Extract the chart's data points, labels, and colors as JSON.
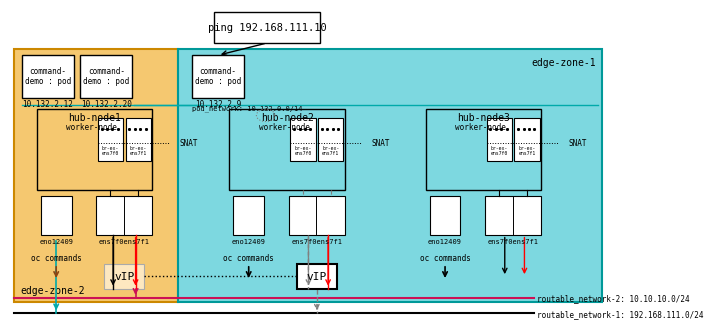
{
  "bg_color": "#ffffff",
  "zone2_color": "#f5c870",
  "zone1_color": "#7dd8e0",
  "zone2_border": "#cc8800",
  "zone1_border": "#009999",
  "node_border": "#000000",
  "ping_label": "ping 192.168.111.10",
  "zone2_label": "edge-zone-2",
  "zone1_label": "edge-zone-1",
  "pod_network_label": "pod_network: 10.132.0.0/14",
  "routable1_label": "routable_network-1: 192.168.111.0/24",
  "routable2_label": "routable_network-2: 10.10.10.0/24",
  "node_labels": [
    "hub-node1",
    "hub-node2",
    "hub-node3"
  ],
  "pod_labels": [
    "command-\ndemo : pod",
    "command-\ndemo : pod",
    "command-\ndemo : pod"
  ],
  "pod_ips": [
    "10.132.2.12",
    "10.132.2.20",
    "10.132.2.9"
  ],
  "snat_label": "SNAT",
  "worker_label": "worker-node",
  "oc_label": "oc commands",
  "vip_label": "vIP",
  "ens_label": "ens7f0ens7f1",
  "eno_label": "eno12409"
}
